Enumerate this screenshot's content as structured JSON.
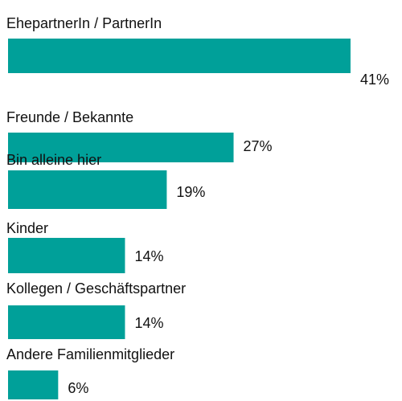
{
  "chart_data": {
    "type": "bar",
    "categories": [
      "EhepartnerIn / PartnerIn",
      "Freunde / Bekannte",
      "Bin alleine hier",
      "Kinder",
      "Kollegen / Geschäftspartner",
      "Andere Familienmitglieder"
    ],
    "values": [
      41,
      27,
      19,
      14,
      14,
      6
    ],
    "value_labels": [
      "41%",
      "27%",
      "19%",
      "14%",
      "14%",
      "6%"
    ],
    "color": "#00a099"
  }
}
